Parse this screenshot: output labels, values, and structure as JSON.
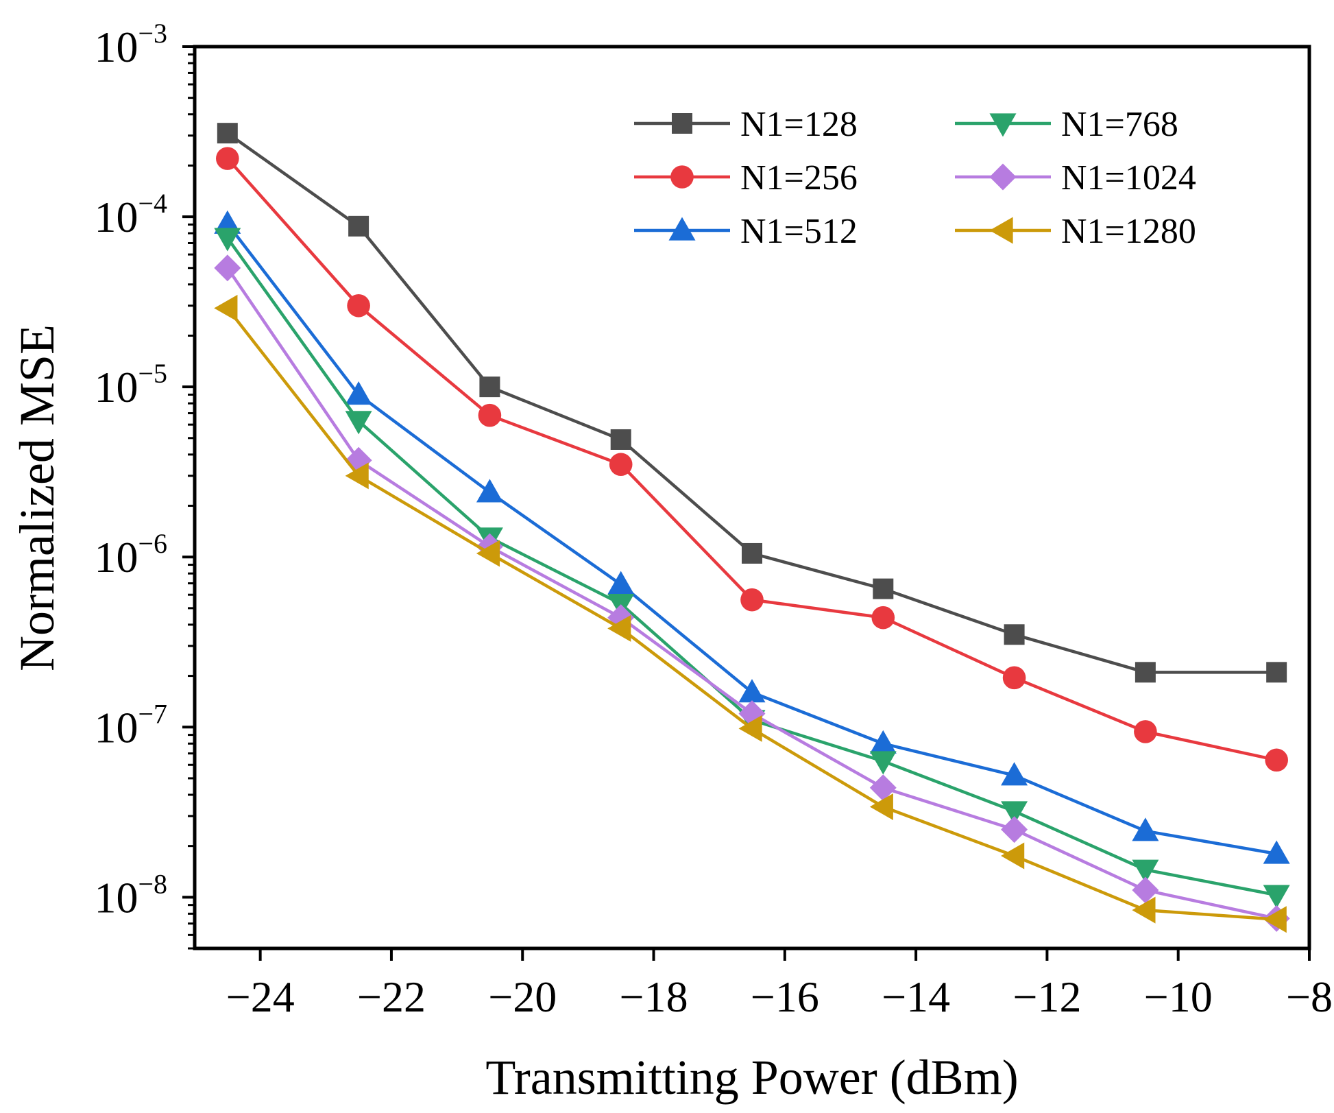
{
  "chart_data": {
    "type": "line",
    "title": "",
    "xlabel": "Transmitting Power (dBm)",
    "ylabel": "Normalized MSE",
    "y_scale": "log",
    "xlim": [
      -25,
      -8
    ],
    "ylim": [
      5e-09,
      0.001
    ],
    "grid": false,
    "legend_position": "top-right",
    "x_ticks": [
      -24,
      -22,
      -20,
      -18,
      -16,
      -14,
      -12,
      -10,
      -8
    ],
    "x_tick_labels": [
      "−24",
      "−22",
      "−20",
      "−18",
      "−16",
      "−14",
      "−12",
      "−10",
      "−8"
    ],
    "y_ticks": [
      {
        "value": 0.001,
        "base": "10",
        "exp": "−3"
      },
      {
        "value": 0.0001,
        "base": "10",
        "exp": "−4"
      },
      {
        "value": 1e-05,
        "base": "10",
        "exp": "−5"
      },
      {
        "value": 1e-06,
        "base": "10",
        "exp": "−6"
      },
      {
        "value": 1e-07,
        "base": "10",
        "exp": "−7"
      },
      {
        "value": 1e-08,
        "base": "10",
        "exp": "−8"
      }
    ],
    "x": [
      -24.5,
      -22.5,
      -20.5,
      -18.5,
      -16.5,
      -14.5,
      -12.5,
      -10.5,
      -8.5
    ],
    "series": [
      {
        "name": "N1=128",
        "marker": "square",
        "color": "#4d4d4d",
        "values": [
          0.00031,
          8.8e-05,
          1e-05,
          4.9e-06,
          1.05e-06,
          6.5e-07,
          3.5e-07,
          2.1e-07,
          2.1e-07
        ]
      },
      {
        "name": "N1=256",
        "marker": "circle",
        "color": "#e8393f",
        "values": [
          0.00022,
          3e-05,
          6.8e-06,
          3.5e-06,
          5.6e-07,
          4.4e-07,
          1.95e-07,
          9.4e-08,
          6.4e-08
        ]
      },
      {
        "name": "N1=512",
        "marker": "triangle-up",
        "color": "#1b6cd6",
        "values": [
          9.1e-05,
          9e-06,
          2.4e-06,
          6.9e-07,
          1.6e-07,
          8e-08,
          5.2e-08,
          2.45e-08,
          1.8e-08
        ]
      },
      {
        "name": "N1=768",
        "marker": "triangle-down",
        "color": "#2aa36b",
        "values": [
          7.5e-05,
          6.3e-06,
          1.3e-06,
          5.3e-07,
          1.1e-07,
          6.3e-08,
          3.2e-08,
          1.45e-08,
          1.03e-08
        ]
      },
      {
        "name": "N1=1024",
        "marker": "diamond",
        "color": "#b77ce0",
        "values": [
          5e-05,
          3.7e-06,
          1.15e-06,
          4.4e-07,
          1.2e-07,
          4.4e-08,
          2.5e-08,
          1.1e-08,
          7.5e-09
        ]
      },
      {
        "name": "N1=1280",
        "marker": "triangle-left",
        "color": "#cc9a0a",
        "values": [
          2.9e-05,
          3e-06,
          1.05e-06,
          3.8e-07,
          9.8e-08,
          3.4e-08,
          1.75e-08,
          8.4e-09,
          7.4e-09
        ]
      }
    ]
  }
}
